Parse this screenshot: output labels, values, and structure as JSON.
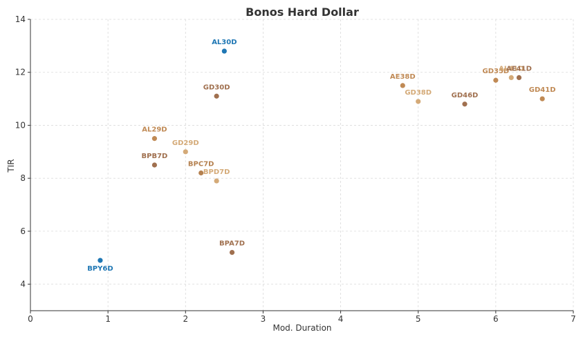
{
  "chart_data": {
    "type": "scatter",
    "title": "Bonos Hard Dollar",
    "xlabel": "Mod. Duration",
    "ylabel": "TIR",
    "xlim": [
      0,
      7
    ],
    "ylim": [
      3,
      14
    ],
    "xticks": [
      0,
      1,
      2,
      3,
      4,
      5,
      6,
      7
    ],
    "yticks": [
      4,
      6,
      8,
      10,
      12,
      14
    ],
    "grid": true,
    "points": [
      {
        "label": "AL30D",
        "x": 2.5,
        "y": 12.8,
        "color": "#1f77b4"
      },
      {
        "label": "BPY6D",
        "x": 0.9,
        "y": 4.9,
        "color": "#1f77b4"
      },
      {
        "label": "GD30D",
        "x": 2.4,
        "y": 11.1,
        "color": "#a0704f"
      },
      {
        "label": "AL29D",
        "x": 1.6,
        "y": 9.5,
        "color": "#c08a55"
      },
      {
        "label": "GD29D",
        "x": 2.0,
        "y": 9.0,
        "color": "#d4aa78"
      },
      {
        "label": "BPB7D",
        "x": 1.6,
        "y": 8.5,
        "color": "#a0704f"
      },
      {
        "label": "BPC7D",
        "x": 2.2,
        "y": 8.2,
        "color": "#b58150"
      },
      {
        "label": "BPD7D",
        "x": 2.4,
        "y": 7.9,
        "color": "#d4aa78"
      },
      {
        "label": "BPA7D",
        "x": 2.6,
        "y": 5.2,
        "color": "#a0704f"
      },
      {
        "label": "AE38D",
        "x": 4.8,
        "y": 11.5,
        "color": "#c08a55"
      },
      {
        "label": "GD38D",
        "x": 5.0,
        "y": 10.9,
        "color": "#d4aa78"
      },
      {
        "label": "GD46D",
        "x": 5.6,
        "y": 10.8,
        "color": "#a0704f"
      },
      {
        "label": "GD35D",
        "x": 6.0,
        "y": 11.7,
        "color": "#c08a55"
      },
      {
        "label": "AL41D",
        "x": 6.2,
        "y": 11.8,
        "color": "#d4aa78"
      },
      {
        "label": "AE41D",
        "x": 6.3,
        "y": 11.8,
        "color": "#a0704f"
      },
      {
        "label": "GD41D",
        "x": 6.6,
        "y": 11.0,
        "color": "#c08a55"
      }
    ]
  }
}
